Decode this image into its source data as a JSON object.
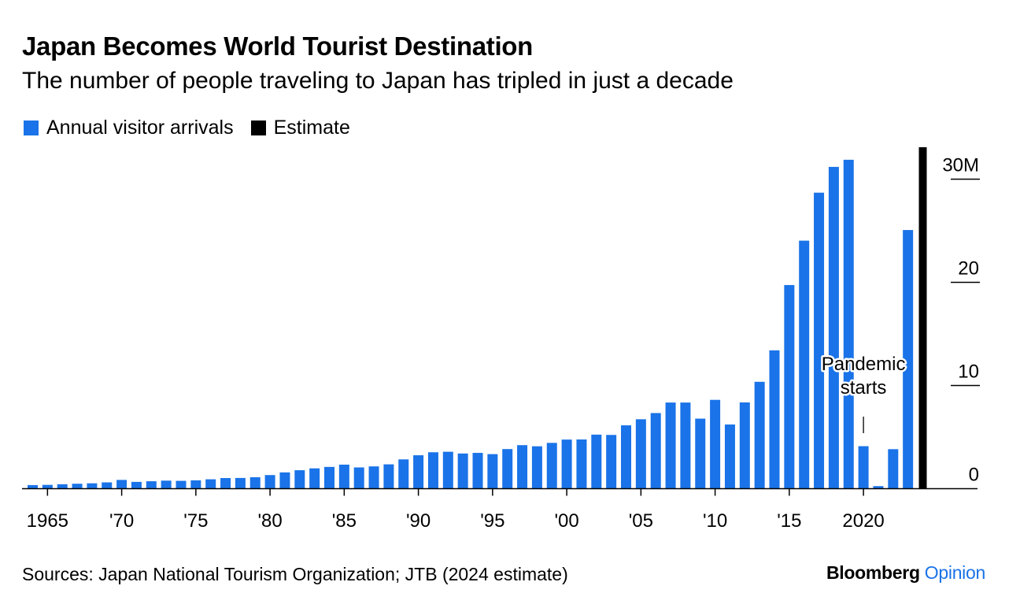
{
  "chart_data": {
    "type": "bar",
    "title": "Japan Becomes World Tourist Destination",
    "subtitle": "The number of people traveling to Japan has tripled in just a decade",
    "legend": [
      {
        "name": "Annual visitor arrivals",
        "color": "#1a73e8"
      },
      {
        "name": "Estimate",
        "color": "#000000"
      }
    ],
    "legend_position": "top-left",
    "unit": "M",
    "ylim": [
      0,
      33
    ],
    "y_axis_position": "right",
    "y_ticks": [
      {
        "value": 0,
        "label": "0"
      },
      {
        "value": 10,
        "label": "10"
      },
      {
        "value": 20,
        "label": "20"
      },
      {
        "value": 30,
        "label": "30M"
      }
    ],
    "x_ticks": [
      {
        "year": 1965,
        "label": "1965"
      },
      {
        "year": 1970,
        "label": "'70"
      },
      {
        "year": 1975,
        "label": "'75"
      },
      {
        "year": 1980,
        "label": "'80"
      },
      {
        "year": 1985,
        "label": "'85"
      },
      {
        "year": 1990,
        "label": "'90"
      },
      {
        "year": 1995,
        "label": "'95"
      },
      {
        "year": 2000,
        "label": "'00"
      },
      {
        "year": 2005,
        "label": "'05"
      },
      {
        "year": 2010,
        "label": "'10"
      },
      {
        "year": 2015,
        "label": "'15"
      },
      {
        "year": 2020,
        "label": "2020"
      }
    ],
    "grid": false,
    "series": [
      {
        "name": "Annual visitor arrivals",
        "color": "#1a73e8",
        "x": [
          1964,
          1965,
          1966,
          1967,
          1968,
          1969,
          1970,
          1971,
          1972,
          1973,
          1974,
          1975,
          1976,
          1977,
          1978,
          1979,
          1980,
          1981,
          1982,
          1983,
          1984,
          1985,
          1986,
          1987,
          1988,
          1989,
          1990,
          1991,
          1992,
          1993,
          1994,
          1995,
          1996,
          1997,
          1998,
          1999,
          2000,
          2001,
          2002,
          2003,
          2004,
          2005,
          2006,
          2007,
          2008,
          2009,
          2010,
          2011,
          2012,
          2013,
          2014,
          2015,
          2016,
          2017,
          2018,
          2019,
          2020,
          2021,
          2022,
          2023
        ],
        "values": [
          0.35,
          0.37,
          0.43,
          0.48,
          0.52,
          0.61,
          0.85,
          0.66,
          0.72,
          0.78,
          0.76,
          0.81,
          0.91,
          1.03,
          1.04,
          1.11,
          1.32,
          1.58,
          1.79,
          1.97,
          2.11,
          2.33,
          2.06,
          2.16,
          2.36,
          2.84,
          3.24,
          3.53,
          3.58,
          3.41,
          3.47,
          3.35,
          3.84,
          4.22,
          4.11,
          4.44,
          4.76,
          4.77,
          5.24,
          5.21,
          6.14,
          6.73,
          7.33,
          8.35,
          8.35,
          6.79,
          8.61,
          6.22,
          8.36,
          10.36,
          13.41,
          19.74,
          24.04,
          28.69,
          31.19,
          31.88,
          4.12,
          0.25,
          3.83,
          25.07
        ]
      },
      {
        "name": "Estimate",
        "color": "#000000",
        "x": [
          2024
        ],
        "values": [
          33.1
        ]
      }
    ],
    "annotations": [
      {
        "lines": [
          "Pandemic",
          "starts"
        ],
        "year": 2020
      }
    ]
  },
  "footer": {
    "source": "Sources: Japan National Tourism Organization; JTB (2024 estimate)",
    "brand": "Bloomberg",
    "brand_suffix": "Opinion"
  }
}
